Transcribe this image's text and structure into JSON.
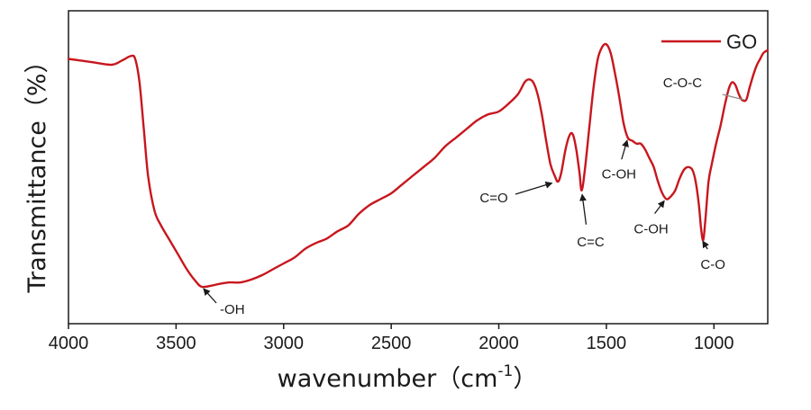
{
  "chart_data": {
    "type": "line",
    "xlabel": "wavenumber（cm",
    "xlabel_sup": "-1",
    "xlabel_close": "）",
    "ylabel": "Transmittance（%）",
    "xlim": [
      4000,
      750
    ],
    "ylim": [
      0,
      100
    ],
    "x_ticks": [
      4000,
      3500,
      3000,
      2500,
      2000,
      1500,
      1000
    ],
    "y_ticks_shown": false,
    "grid": false,
    "legend_position": "top-right",
    "series": [
      {
        "name": "GO",
        "color": "#c8161d",
        "points": [
          [
            4000,
            86
          ],
          [
            3900,
            85
          ],
          [
            3800,
            84
          ],
          [
            3750,
            85.5
          ],
          [
            3710,
            87
          ],
          [
            3690,
            86
          ],
          [
            3670,
            78
          ],
          [
            3650,
            62
          ],
          [
            3630,
            46
          ],
          [
            3600,
            34
          ],
          [
            3570,
            29
          ],
          [
            3530,
            24
          ],
          [
            3490,
            19
          ],
          [
            3450,
            14
          ],
          [
            3410,
            10
          ],
          [
            3380,
            8
          ],
          [
            3330,
            8.5
          ],
          [
            3300,
            9
          ],
          [
            3250,
            9.5
          ],
          [
            3200,
            9.5
          ],
          [
            3150,
            10.5
          ],
          [
            3100,
            12
          ],
          [
            3050,
            14
          ],
          [
            3000,
            16
          ],
          [
            2950,
            18
          ],
          [
            2900,
            21
          ],
          [
            2850,
            23
          ],
          [
            2800,
            24.5
          ],
          [
            2750,
            27
          ],
          [
            2700,
            29
          ],
          [
            2650,
            33
          ],
          [
            2600,
            36
          ],
          [
            2550,
            38
          ],
          [
            2500,
            40
          ],
          [
            2450,
            43
          ],
          [
            2400,
            46
          ],
          [
            2350,
            49
          ],
          [
            2300,
            52
          ],
          [
            2250,
            56
          ],
          [
            2200,
            59
          ],
          [
            2150,
            62
          ],
          [
            2100,
            65
          ],
          [
            2050,
            67
          ],
          [
            2000,
            68
          ],
          [
            1950,
            71
          ],
          [
            1910,
            74
          ],
          [
            1880,
            78
          ],
          [
            1860,
            79
          ],
          [
            1840,
            78
          ],
          [
            1820,
            74
          ],
          [
            1800,
            67
          ],
          [
            1780,
            58
          ],
          [
            1760,
            50
          ],
          [
            1740,
            46
          ],
          [
            1725,
            44
          ],
          [
            1710,
            47
          ],
          [
            1690,
            55
          ],
          [
            1670,
            60
          ],
          [
            1655,
            60
          ],
          [
            1640,
            55
          ],
          [
            1625,
            47
          ],
          [
            1615,
            41
          ],
          [
            1600,
            48
          ],
          [
            1580,
            62
          ],
          [
            1560,
            76
          ],
          [
            1540,
            86
          ],
          [
            1520,
            90
          ],
          [
            1500,
            91
          ],
          [
            1480,
            88
          ],
          [
            1460,
            81
          ],
          [
            1440,
            73
          ],
          [
            1420,
            64
          ],
          [
            1400,
            59
          ],
          [
            1380,
            58
          ],
          [
            1360,
            57
          ],
          [
            1340,
            57
          ],
          [
            1320,
            55
          ],
          [
            1300,
            52
          ],
          [
            1280,
            49
          ],
          [
            1260,
            44
          ],
          [
            1240,
            40
          ],
          [
            1220,
            38
          ],
          [
            1200,
            39
          ],
          [
            1180,
            41
          ],
          [
            1160,
            45
          ],
          [
            1140,
            48
          ],
          [
            1120,
            49
          ],
          [
            1100,
            48
          ],
          [
            1085,
            44
          ],
          [
            1070,
            36
          ],
          [
            1060,
            28
          ],
          [
            1050,
            24
          ],
          [
            1040,
            31
          ],
          [
            1025,
            44
          ],
          [
            1010,
            50
          ],
          [
            990,
            57
          ],
          [
            970,
            63
          ],
          [
            950,
            70
          ],
          [
            930,
            76
          ],
          [
            915,
            78
          ],
          [
            900,
            77
          ],
          [
            885,
            74
          ],
          [
            870,
            72
          ],
          [
            850,
            72
          ],
          [
            835,
            76
          ],
          [
            815,
            81
          ],
          [
            800,
            84
          ],
          [
            785,
            86
          ],
          [
            770,
            88
          ],
          [
            750,
            89
          ]
        ]
      }
    ],
    "annotations": [
      {
        "text": "-OH",
        "x": 3380,
        "y": 8
      },
      {
        "text": "C=O",
        "x": 1730,
        "y": 44
      },
      {
        "text": "C=C",
        "x": 1615,
        "y": 41
      },
      {
        "text": "C-OH",
        "x": 1400,
        "y": 59
      },
      {
        "text": "C-OH",
        "x": 1225,
        "y": 38
      },
      {
        "text": "C-O",
        "x": 1055,
        "y": 24
      },
      {
        "text": "C-O-C",
        "x": 860,
        "y": 72
      }
    ],
    "legend": [
      {
        "label": "GO",
        "color": "#c8161d"
      }
    ]
  }
}
